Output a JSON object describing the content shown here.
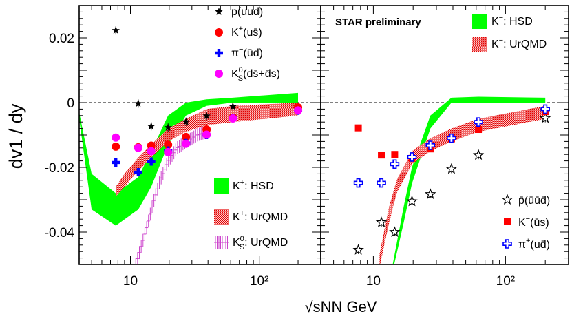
{
  "chart_data": [
    {
      "type": "scatter",
      "panel": "left",
      "ylabel": "dv1 / dy",
      "ylim": [
        -0.05,
        0.03
      ],
      "xlim": [
        4.0,
        300
      ],
      "xscale": "log",
      "series": [
        {
          "name": "p(uud)",
          "legend_base": "p(uud)",
          "color": "#000000",
          "marker": "star",
          "points": [
            [
              7.7,
              0.0223
            ],
            [
              11.5,
              -0.0003
            ],
            [
              14.5,
              -0.0073
            ],
            [
              19.6,
              -0.0077
            ],
            [
              27,
              -0.0059
            ],
            [
              39,
              -0.0041
            ],
            [
              62.4,
              -0.0012
            ],
            [
              200,
              -0.0012
            ]
          ]
        },
        {
          "name": "K+(us̄)",
          "legend_base": "K",
          "legend_sup": "+",
          "legend_rest": "(us̄)",
          "color": "#ff0000",
          "marker": "circle",
          "points": [
            [
              7.7,
              -0.0136
            ],
            [
              11.5,
              -0.0138
            ],
            [
              14.5,
              -0.0133
            ],
            [
              19.6,
              -0.013
            ],
            [
              27,
              -0.0106
            ],
            [
              39,
              -0.0083
            ],
            [
              62.4,
              -0.0046
            ],
            [
              200,
              -0.0015
            ]
          ]
        },
        {
          "name": "π−(ūd)",
          "legend_base": "π",
          "legend_sup": "−",
          "legend_rest": "(ūd)",
          "color": "#0000ff",
          "marker": "cross",
          "points": [
            [
              7.7,
              -0.0185
            ],
            [
              11.5,
              -0.0215
            ],
            [
              14.5,
              -0.0182
            ],
            [
              19.6,
              -0.0148
            ],
            [
              27,
              -0.0125
            ],
            [
              39,
              -0.01
            ],
            [
              62.4,
              -0.0047
            ],
            [
              200,
              -0.0025
            ]
          ]
        },
        {
          "name": "K0S(ds̄+d̄s)",
          "legend_base": "K",
          "legend_sup": "0",
          "legend_subs": "S",
          "legend_rest": "(ds̄+d̄s)",
          "color": "#ff00ff",
          "marker": "circle",
          "points": [
            [
              7.7,
              -0.0108
            ],
            [
              11.5,
              -0.014
            ],
            [
              14.5,
              -0.015
            ],
            [
              19.6,
              -0.0153
            ],
            [
              27,
              -0.0127
            ],
            [
              39,
              -0.0099
            ],
            [
              62.4,
              -0.0049
            ],
            [
              200,
              -0.0024
            ]
          ]
        }
      ],
      "bands": [
        {
          "name": "K+: HSD",
          "legend_base": "K",
          "legend_sup": "+",
          "legend_rest": ": HSD",
          "color": "#00ff00",
          "x": [
            4.0,
            5.0,
            7.7,
            11.5,
            14.5,
            19.6,
            27,
            39,
            62.4,
            200
          ],
          "lo": [
            -0.005,
            -0.033,
            -0.038,
            -0.033,
            -0.026,
            -0.013,
            -0.004,
            -0.001,
            0.0,
            0.0
          ],
          "hi": [
            -0.003,
            -0.022,
            -0.028,
            -0.023,
            -0.015,
            -0.004,
            0.0,
            0.001,
            0.0015,
            0.003
          ]
        },
        {
          "name": "K+: UrQMD",
          "legend_base": "K",
          "legend_sup": "+",
          "legend_rest": ": UrQMD",
          "color": "#e80000",
          "x": [
            7.7,
            9.0,
            11.5,
            14.5,
            19.6,
            27,
            39,
            62.4,
            200
          ],
          "lo": [
            -0.029,
            -0.026,
            -0.021,
            -0.017,
            -0.012,
            -0.009,
            -0.007,
            -0.006,
            -0.004
          ],
          "hi": [
            -0.026,
            -0.022,
            -0.017,
            -0.013,
            -0.008,
            -0.005,
            -0.002,
            -0.001,
            0.0
          ]
        },
        {
          "name": "K0S: UrQMD",
          "legend_base": "K",
          "legend_sup": "0",
          "legend_subs": "S",
          "legend_rest": ": UrQMD",
          "color": "#cc44cc",
          "hatched": true,
          "x": [
            11.0,
            12.0,
            13.5,
            15.0,
            17.0,
            19.6,
            23.0,
            27,
            33.0,
            39
          ],
          "lo": [
            -0.052,
            -0.047,
            -0.04,
            -0.033,
            -0.026,
            -0.02,
            -0.016,
            -0.014,
            -0.012,
            -0.011
          ],
          "hi": [
            -0.048,
            -0.043,
            -0.036,
            -0.029,
            -0.022,
            -0.016,
            -0.012,
            -0.01,
            -0.008,
            -0.007
          ]
        }
      ]
    },
    {
      "type": "scatter",
      "panel": "right",
      "title": "STAR preliminary",
      "ylim": [
        -0.05,
        0.03
      ],
      "xlim": [
        4.0,
        300
      ],
      "xscale": "log",
      "xlabel": "√sNN GeV",
      "xticks": [
        "10",
        "10²"
      ],
      "yticks": [
        "0.02",
        "0",
        "-0.02",
        "-0.04"
      ],
      "series": [
        {
          "name": "p̄(ūūd̄)",
          "legend_base": "p̄(ūūd̄)",
          "color": "#000000",
          "marker": "open-star",
          "points": [
            [
              7.7,
              -0.0455
            ],
            [
              11.5,
              -0.037
            ],
            [
              14.5,
              -0.04
            ],
            [
              19.6,
              -0.0305
            ],
            [
              27,
              -0.0283
            ],
            [
              39,
              -0.0205
            ],
            [
              62.4,
              -0.0162
            ],
            [
              200,
              -0.0048
            ]
          ]
        },
        {
          "name": "K−(ūs)",
          "legend_base": "K",
          "legend_sup": "−",
          "legend_rest": "(ūs)",
          "color": "#ff0000",
          "marker": "square",
          "points": [
            [
              7.7,
              -0.0078
            ],
            [
              11.5,
              -0.0162
            ],
            [
              14.5,
              -0.016
            ],
            [
              19.6,
              -0.0172
            ],
            [
              27,
              -0.0143
            ],
            [
              39,
              -0.0112
            ],
            [
              62.4,
              -0.0083
            ],
            [
              200,
              -0.0028
            ]
          ]
        },
        {
          "name": "π+(ud̄)",
          "legend_base": "π",
          "legend_sup": "+",
          "legend_rest": "(ud̄)",
          "color": "#0000ff",
          "marker": "open-cross",
          "points": [
            [
              7.7,
              -0.0248
            ],
            [
              11.5,
              -0.0248
            ],
            [
              14.5,
              -0.019
            ],
            [
              19.6,
              -0.0168
            ],
            [
              27,
              -0.0132
            ],
            [
              39,
              -0.011
            ],
            [
              62.4,
              -0.006
            ],
            [
              200,
              -0.002
            ]
          ]
        }
      ],
      "bands": [
        {
          "name": "K−: HSD",
          "legend_base": "K",
          "legend_sup": "−",
          "legend_rest": ": HSD",
          "color": "#00ff00",
          "x": [
            14.0,
            17.0,
            19.6,
            27,
            39,
            62.4,
            200
          ],
          "lo": [
            -0.052,
            -0.037,
            -0.025,
            -0.008,
            0.0,
            0.0,
            0.0
          ],
          "hi": [
            -0.05,
            -0.032,
            -0.02,
            -0.004,
            0.0015,
            0.0018,
            0.0015
          ]
        },
        {
          "name": "K−: UrQMD",
          "legend_base": "K",
          "legend_sup": "−",
          "legend_rest": ": UrQMD",
          "color": "#e80000",
          "x": [
            11.0,
            13.0,
            15.0,
            19.6,
            27,
            39,
            62.4,
            200
          ],
          "lo": [
            -0.052,
            -0.038,
            -0.028,
            -0.019,
            -0.015,
            -0.012,
            -0.009,
            -0.005
          ],
          "hi": [
            -0.048,
            -0.033,
            -0.024,
            -0.015,
            -0.011,
            -0.008,
            -0.005,
            -0.001
          ]
        }
      ]
    }
  ]
}
